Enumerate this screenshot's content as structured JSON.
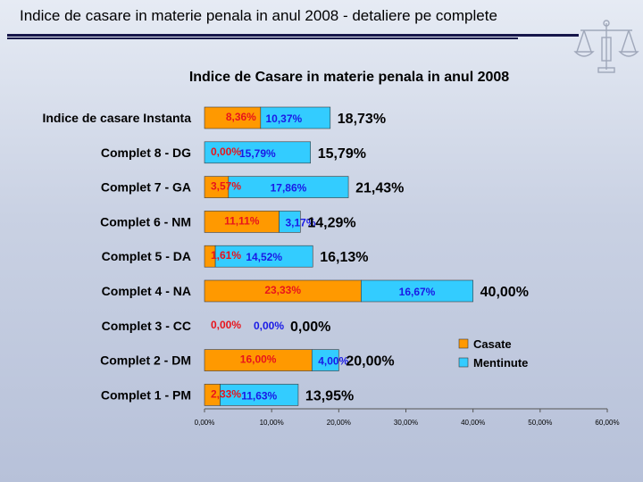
{
  "slide": {
    "title": "Indice de casare in materie penala in anul 2008 - detaliere pe complete"
  },
  "colors": {
    "series_a": "#ff9900",
    "series_b": "#33ccff",
    "label_a": "#e8141c",
    "label_b": "#1a1ae6",
    "title_rule": "#16164a"
  },
  "icons": [
    "scales-of-justice-logo-icon"
  ],
  "chart_data": {
    "type": "bar",
    "orientation": "horizontal",
    "stacked": true,
    "title": "Indice de Casare in materie penala in anul 2008",
    "categories": [
      "Indice de casare Instanta",
      "Complet 8 - DG",
      "Complet 7 - GA",
      "Complet 6 - NM",
      "Complet 5 - DA",
      "Complet 4 - NA",
      "Complet 3 - CC",
      "Complet 2 - DM",
      "Complet 1 - PM"
    ],
    "series": [
      {
        "name": "Casate",
        "values": [
          8.36,
          0.0,
          3.57,
          11.11,
          1.61,
          23.33,
          0.0,
          16.0,
          2.33
        ],
        "labels": [
          "8,36%",
          "0,00%",
          "3,57%",
          "11,11%",
          "1,61%",
          "23,33%",
          "0,00%",
          "16,00%",
          "2,33%"
        ]
      },
      {
        "name": "Mentinute",
        "values": [
          10.37,
          15.79,
          17.86,
          3.17,
          14.52,
          16.67,
          0.0,
          4.0,
          11.63
        ],
        "labels": [
          "10,37%",
          "15,79%",
          "17,86%",
          "3,17%",
          "14,52%",
          "16,67%",
          "0,00%",
          "4,00%",
          "11,63%"
        ]
      }
    ],
    "totals": [
      "18,73%",
      "15,79%",
      "21,43%",
      "14,29%",
      "16,13%",
      "40,00%",
      "0,00%",
      "20,00%",
      "13,95%"
    ],
    "xlim": [
      0,
      60
    ],
    "xticks": [
      0,
      10,
      20,
      30,
      40,
      50,
      60
    ],
    "xtick_labels": [
      "0,00%",
      "10,00%",
      "20,00%",
      "30,00%",
      "40,00%",
      "50,00%",
      "60,00%"
    ],
    "legend": {
      "position": "right",
      "entries": [
        "Casate",
        "Mentinute"
      ]
    },
    "grid": false
  }
}
